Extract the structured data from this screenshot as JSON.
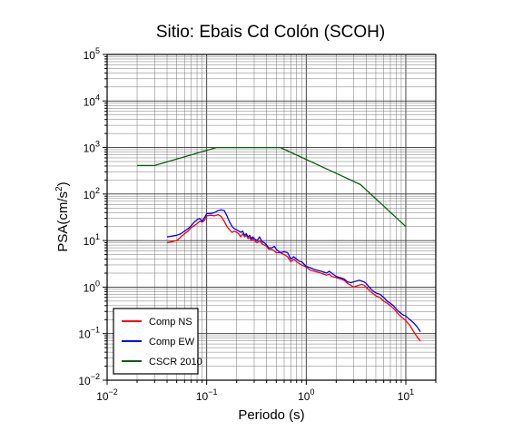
{
  "chart_data": {
    "type": "line",
    "title": "Sitio: Ebais Cd Colón (SCOH)",
    "xlabel": "Periodo (s)",
    "ylabel": "PSA(cm/s",
    "ylabel_sup": "2",
    "ylabel_close": ")",
    "x_scale": "log",
    "y_scale": "log",
    "xlim": [
      0.01,
      20
    ],
    "ylim": [
      0.01,
      100000
    ],
    "x_ticks": [
      {
        "value": 0.01,
        "base": "10",
        "exp": "−2"
      },
      {
        "value": 0.1,
        "base": "10",
        "exp": "−1"
      },
      {
        "value": 1,
        "base": "10",
        "exp": "0"
      },
      {
        "value": 10,
        "base": "10",
        "exp": "1"
      }
    ],
    "y_ticks": [
      {
        "value": 0.01,
        "base": "10",
        "exp": "−2"
      },
      {
        "value": 0.1,
        "base": "10",
        "exp": "−1"
      },
      {
        "value": 1,
        "base": "10",
        "exp": "0"
      },
      {
        "value": 10,
        "base": "10",
        "exp": "1"
      },
      {
        "value": 100,
        "base": "10",
        "exp": "2"
      },
      {
        "value": 1000,
        "base": "10",
        "exp": "3"
      },
      {
        "value": 10000,
        "base": "10",
        "exp": "4"
      },
      {
        "value": 100000,
        "base": "10",
        "exp": "5"
      }
    ],
    "grid": true,
    "legend_position": "bottom-left",
    "series": [
      {
        "name": "Comp NS",
        "color": "#ff0000",
        "x": [
          0.04,
          0.045,
          0.05,
          0.055,
          0.06,
          0.065,
          0.07,
          0.075,
          0.08,
          0.085,
          0.09,
          0.095,
          0.1,
          0.11,
          0.12,
          0.13,
          0.14,
          0.15,
          0.16,
          0.17,
          0.18,
          0.19,
          0.2,
          0.21,
          0.22,
          0.23,
          0.24,
          0.25,
          0.26,
          0.27,
          0.28,
          0.29,
          0.3,
          0.32,
          0.34,
          0.36,
          0.38,
          0.4,
          0.42,
          0.45,
          0.48,
          0.5,
          0.55,
          0.6,
          0.65,
          0.7,
          0.75,
          0.8,
          0.85,
          0.9,
          1.0,
          1.1,
          1.2,
          1.3,
          1.4,
          1.5,
          1.6,
          1.7,
          1.8,
          2.0,
          2.2,
          2.4,
          2.6,
          2.8,
          3.0,
          3.2,
          3.4,
          3.6,
          3.8,
          4.0,
          4.3,
          4.6,
          5.0,
          5.5,
          6.0,
          6.5,
          7.0,
          7.5,
          8.0,
          8.5,
          9.0,
          9.5,
          10,
          11,
          12,
          13,
          14
        ],
        "y": [
          9,
          9.5,
          10,
          12,
          14,
          16,
          19,
          21,
          23,
          26,
          25,
          27,
          34,
          35,
          34,
          36,
          33,
          26,
          20,
          17,
          15,
          16,
          15,
          14,
          12,
          14,
          12,
          13,
          11,
          12,
          10,
          11,
          10,
          9,
          10,
          8.5,
          8,
          7.5,
          6.5,
          6.5,
          6,
          5.5,
          5.5,
          5,
          4.5,
          3.5,
          4,
          3.5,
          3.2,
          3,
          2.7,
          2.3,
          2.2,
          2.1,
          2,
          1.9,
          1.8,
          1.9,
          1.7,
          1.6,
          1.5,
          1.4,
          1.2,
          1.1,
          1,
          1.05,
          1.1,
          1.15,
          1.1,
          1.0,
          0.85,
          0.75,
          0.65,
          0.6,
          0.5,
          0.45,
          0.4,
          0.35,
          0.3,
          0.26,
          0.23,
          0.21,
          0.19,
          0.15,
          0.11,
          0.085,
          0.07
        ]
      },
      {
        "name": "Comp EW",
        "color": "#0000ff",
        "x": [
          0.04,
          0.045,
          0.05,
          0.055,
          0.06,
          0.065,
          0.07,
          0.075,
          0.08,
          0.085,
          0.09,
          0.095,
          0.1,
          0.11,
          0.12,
          0.13,
          0.14,
          0.15,
          0.16,
          0.17,
          0.18,
          0.19,
          0.2,
          0.21,
          0.22,
          0.23,
          0.24,
          0.25,
          0.26,
          0.27,
          0.28,
          0.29,
          0.3,
          0.32,
          0.34,
          0.36,
          0.38,
          0.4,
          0.42,
          0.45,
          0.48,
          0.5,
          0.55,
          0.6,
          0.65,
          0.7,
          0.75,
          0.8,
          0.85,
          0.9,
          1.0,
          1.1,
          1.2,
          1.3,
          1.4,
          1.5,
          1.6,
          1.7,
          1.8,
          2.0,
          2.2,
          2.4,
          2.6,
          2.8,
          3.0,
          3.2,
          3.4,
          3.6,
          3.8,
          4.0,
          4.3,
          4.6,
          5.0,
          5.5,
          6.0,
          6.5,
          7.0,
          7.5,
          8.0,
          8.5,
          9.0,
          9.5,
          10,
          11,
          12,
          13,
          14
        ],
        "y": [
          12,
          12.5,
          13,
          14,
          16,
          18,
          21,
          25,
          28,
          30,
          26,
          31,
          38,
          38,
          40,
          44,
          46,
          44,
          34,
          25,
          20,
          18,
          17,
          16,
          15,
          16,
          13,
          14,
          12,
          13,
          11,
          12,
          11,
          10,
          12,
          9.5,
          9,
          8,
          7,
          7,
          7.5,
          6.5,
          5.5,
          5.8,
          5.5,
          4,
          4.5,
          4,
          3.6,
          3.5,
          2.8,
          2.6,
          2.4,
          2.3,
          2.2,
          2.1,
          2,
          2.2,
          2,
          1.7,
          1.6,
          1.5,
          1.3,
          1.25,
          1.3,
          1.35,
          1.4,
          1.35,
          1.3,
          1.2,
          1.0,
          0.85,
          0.75,
          0.7,
          0.6,
          0.5,
          0.45,
          0.4,
          0.34,
          0.3,
          0.27,
          0.25,
          0.24,
          0.2,
          0.17,
          0.14,
          0.11
        ]
      },
      {
        "name": "CSCR 2010",
        "color": "#0a6010",
        "x": [
          0.02,
          0.03,
          0.125,
          0.55,
          3.5,
          10
        ],
        "y": [
          410,
          410,
          1000,
          1000,
          160,
          20
        ]
      }
    ]
  }
}
